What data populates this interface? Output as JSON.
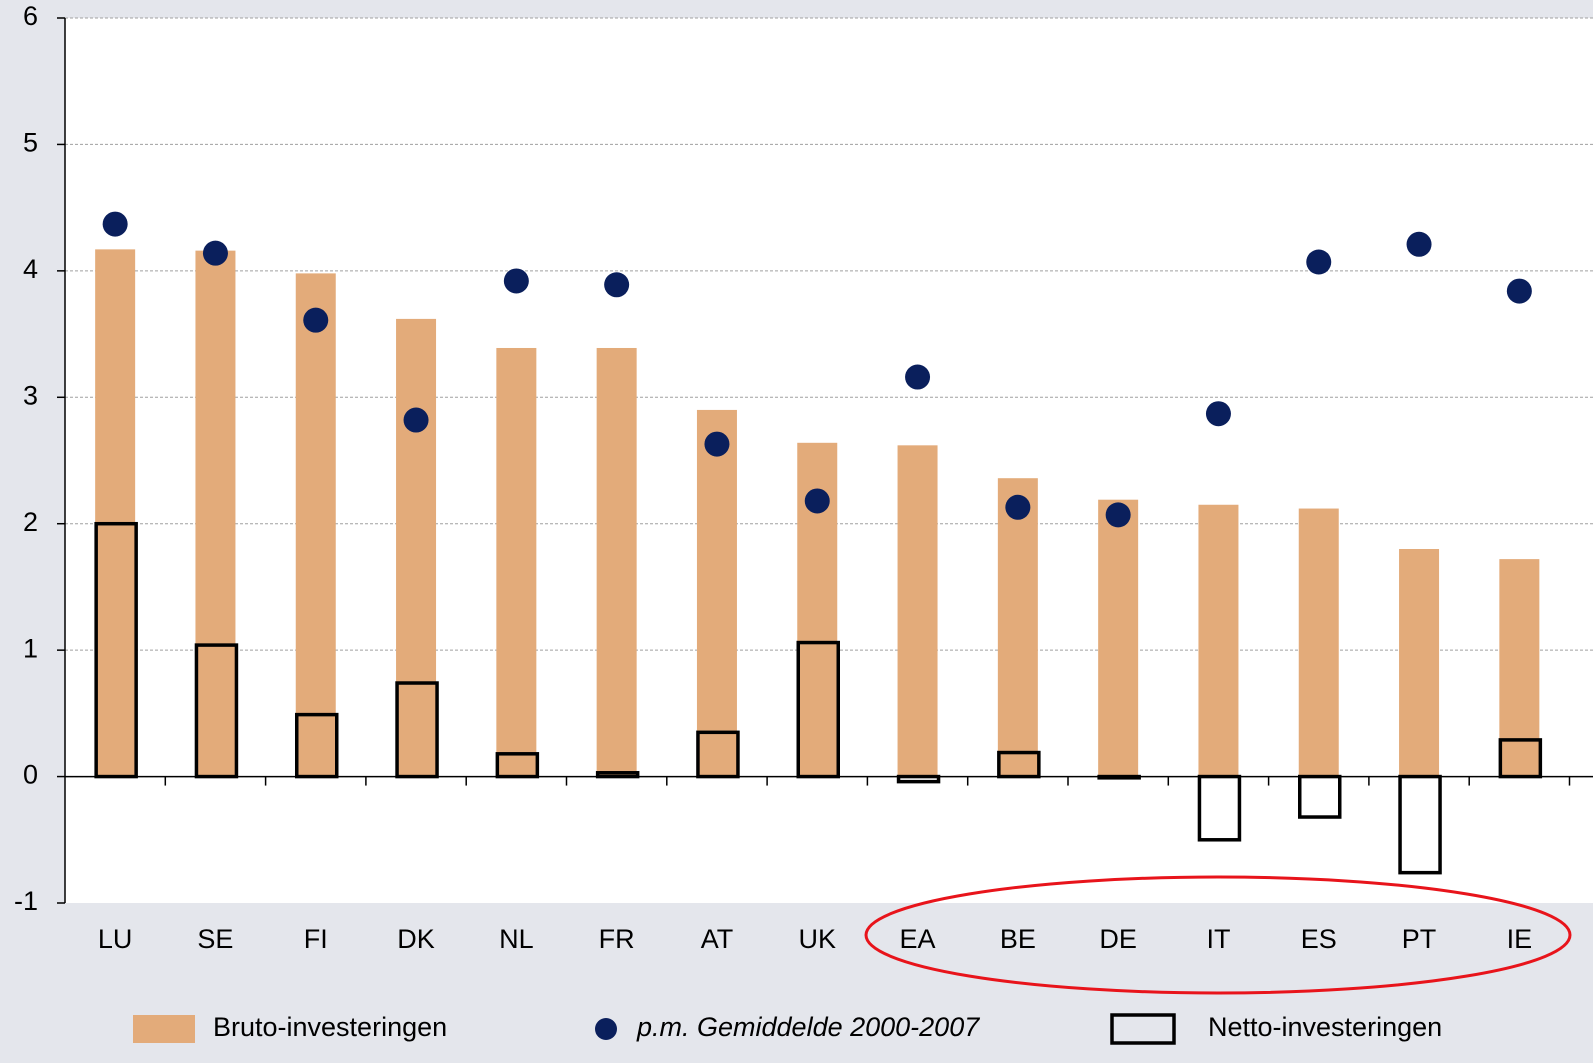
{
  "chart_data": {
    "type": "bar",
    "categories": [
      "LU",
      "SE",
      "FI",
      "DK",
      "NL",
      "FR",
      "AT",
      "UK",
      "EA",
      "BE",
      "DE",
      "IT",
      "ES",
      "PT",
      "IE"
    ],
    "series": [
      {
        "name": "Bruto-investeringen",
        "mark": "bar",
        "color": "#e3ab7a",
        "values": [
          4.17,
          4.16,
          3.98,
          3.62,
          3.39,
          3.39,
          2.9,
          2.64,
          2.62,
          2.36,
          2.19,
          2.15,
          2.12,
          1.8,
          1.72
        ]
      },
      {
        "name": "p.m. Gemiddelde 2000-2007",
        "mark": "dot",
        "color": "#0a1f5c",
        "values": [
          4.37,
          4.14,
          3.61,
          2.82,
          3.92,
          3.89,
          2.63,
          2.18,
          3.16,
          2.13,
          2.07,
          2.87,
          4.07,
          4.21,
          3.84
        ]
      },
      {
        "name": "Netto-investeringen",
        "mark": "outline",
        "color": "#000000",
        "values": [
          2.0,
          1.04,
          0.49,
          0.74,
          0.18,
          0.03,
          0.35,
          1.06,
          -0.04,
          0.19,
          -0.01,
          -0.5,
          -0.32,
          -0.76,
          0.29
        ]
      }
    ],
    "ylim": [
      -1,
      6
    ],
    "yticks": [
      -1,
      0,
      1,
      2,
      3,
      4,
      5,
      6
    ],
    "grid": true,
    "legend": "bottom",
    "highlight_color": "#e8141b"
  }
}
